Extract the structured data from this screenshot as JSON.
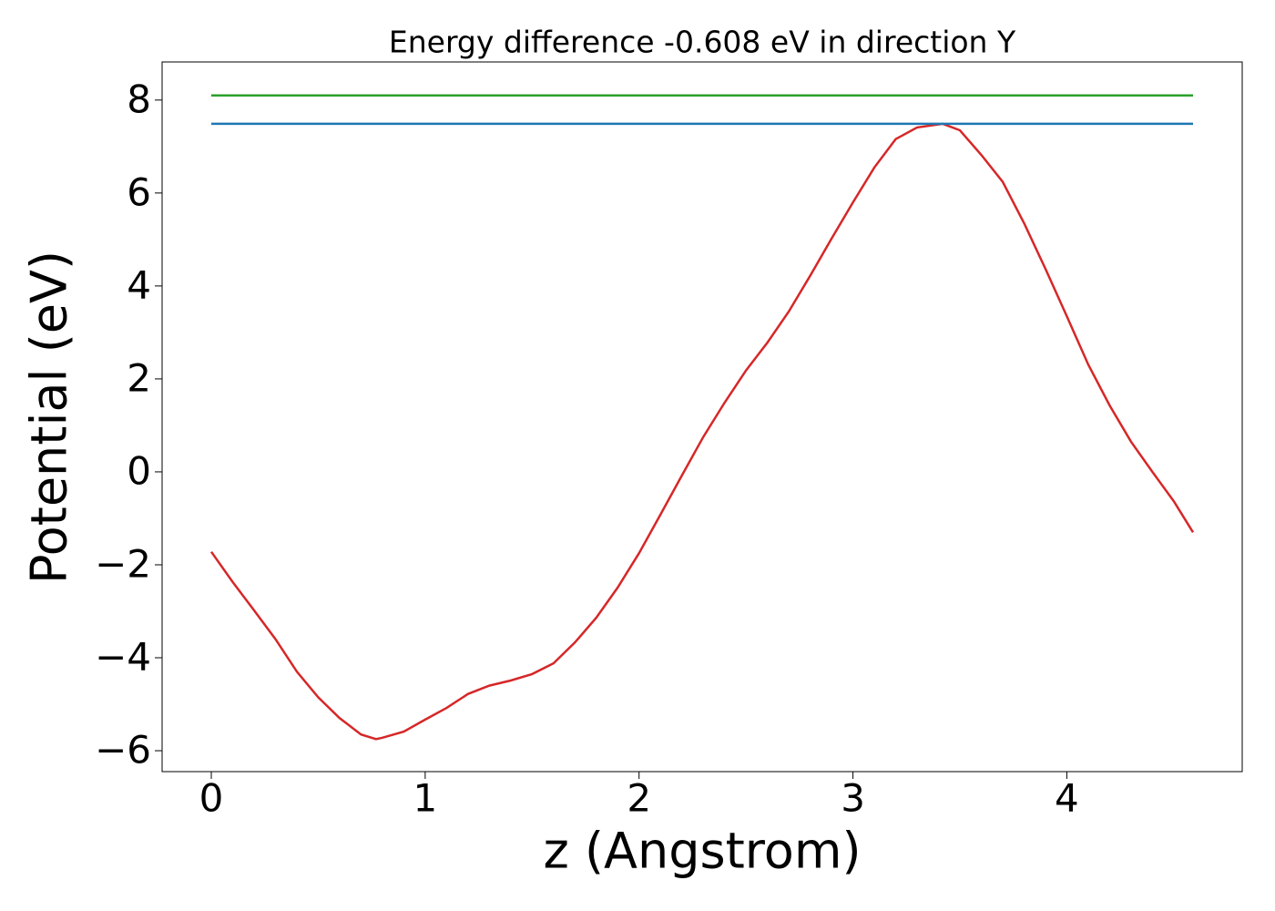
{
  "chart_data": {
    "type": "line",
    "title": "Energy difference -0.608 eV in direction Y",
    "xlabel": "z (Angstrom)",
    "ylabel": "Potential (eV)",
    "xlim": [
      -0.23,
      4.82
    ],
    "ylim": [
      -6.45,
      8.82
    ],
    "xticks": [
      0,
      1,
      2,
      3,
      4
    ],
    "yticks": [
      {
        "value": -6,
        "label": "−6"
      },
      {
        "value": -4,
        "label": "−4"
      },
      {
        "value": -2,
        "label": "−2"
      },
      0,
      2,
      4,
      6,
      8
    ],
    "series": [
      {
        "color": "#d62728",
        "x": [
          0,
          0.1,
          0.2,
          0.3,
          0.4,
          0.5,
          0.6,
          0.7,
          0.77,
          0.8,
          0.9,
          1.0,
          1.1,
          1.2,
          1.3,
          1.4,
          1.5,
          1.6,
          1.7,
          1.8,
          1.9,
          2.0,
          2.1,
          2.2,
          2.3,
          2.4,
          2.5,
          2.6,
          2.7,
          2.8,
          2.9,
          3.0,
          3.1,
          3.2,
          3.3,
          3.42,
          3.5,
          3.6,
          3.7,
          3.8,
          3.9,
          4.0,
          4.1,
          4.2,
          4.3,
          4.4,
          4.5,
          4.59
        ],
        "values": [
          -1.72,
          -2.37,
          -2.98,
          -3.6,
          -4.3,
          -4.85,
          -5.3,
          -5.65,
          -5.75,
          -5.72,
          -5.59,
          -5.33,
          -5.08,
          -4.78,
          -4.6,
          -4.49,
          -4.35,
          -4.12,
          -3.67,
          -3.14,
          -2.49,
          -1.75,
          -0.92,
          -0.08,
          0.75,
          1.49,
          2.18,
          2.78,
          3.45,
          4.22,
          5.02,
          5.8,
          6.55,
          7.16,
          7.41,
          7.49,
          7.35,
          6.82,
          6.24,
          5.35,
          4.37,
          3.35,
          2.31,
          1.43,
          0.65,
          0.0,
          -0.63,
          -1.3
        ]
      },
      {
        "color": "#1f77b4",
        "x": [
          0,
          4.59
        ],
        "values": [
          7.49,
          7.49
        ]
      },
      {
        "color": "#2ca02c",
        "x": [
          0,
          4.59
        ],
        "values": [
          8.1,
          8.1
        ]
      }
    ]
  }
}
